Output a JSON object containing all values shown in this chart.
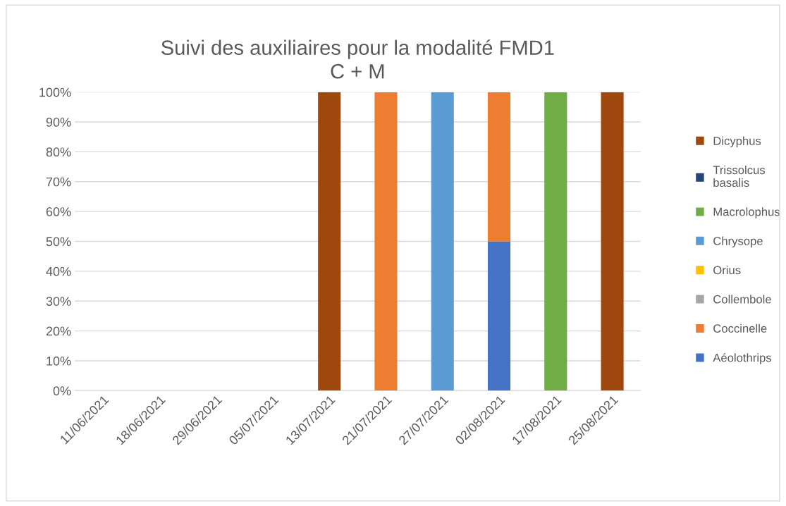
{
  "chart_data": {
    "type": "bar",
    "stacked": true,
    "title": "Suivi des auxiliaires pour la modalité FMD1\nC + M",
    "categories": [
      "11/06/2021",
      "18/06/2021",
      "29/06/2021",
      "05/07/2021",
      "13/07/2021",
      "21/07/2021",
      "27/07/2021",
      "02/08/2021",
      "17/08/2021",
      "25/08/2021"
    ],
    "series": [
      {
        "name": "Aéolothrips",
        "color": "#4472c4",
        "values": [
          0,
          0,
          0,
          0,
          0,
          0,
          0,
          50,
          0,
          0
        ]
      },
      {
        "name": "Coccinelle",
        "color": "#ed7d31",
        "values": [
          0,
          0,
          0,
          0,
          0,
          100,
          0,
          50,
          0,
          0
        ]
      },
      {
        "name": "Collembole",
        "color": "#a5a5a5",
        "values": [
          0,
          0,
          0,
          0,
          0,
          0,
          0,
          0,
          0,
          0
        ]
      },
      {
        "name": "Orius",
        "color": "#ffc000",
        "values": [
          0,
          0,
          0,
          0,
          0,
          0,
          0,
          0,
          0,
          0
        ]
      },
      {
        "name": "Chrysope",
        "color": "#5b9bd5",
        "values": [
          0,
          0,
          0,
          0,
          0,
          0,
          100,
          0,
          0,
          0
        ]
      },
      {
        "name": "Macrolophus",
        "color": "#70ad47",
        "values": [
          0,
          0,
          0,
          0,
          0,
          0,
          0,
          0,
          100,
          0
        ]
      },
      {
        "name": "Trissolcus\nbasalis",
        "color": "#264478",
        "values": [
          0,
          0,
          0,
          0,
          0,
          0,
          0,
          0,
          0,
          0
        ]
      },
      {
        "name": "Dicyphus",
        "color": "#9e480e",
        "values": [
          0,
          0,
          0,
          0,
          100,
          0,
          0,
          0,
          0,
          100
        ]
      }
    ],
    "ylim": [
      0,
      100
    ],
    "yticks": [
      {
        "value": 0,
        "label": "0%"
      },
      {
        "value": 10,
        "label": "10%"
      },
      {
        "value": 20,
        "label": "20%"
      },
      {
        "value": 30,
        "label": "30%"
      },
      {
        "value": 40,
        "label": "40%"
      },
      {
        "value": 50,
        "label": "50%"
      },
      {
        "value": 60,
        "label": "60%"
      },
      {
        "value": 70,
        "label": "70%"
      },
      {
        "value": 80,
        "label": "80%"
      },
      {
        "value": 90,
        "label": "90%"
      },
      {
        "value": 100,
        "label": "100%"
      }
    ],
    "grid": "y",
    "legend": "right"
  }
}
